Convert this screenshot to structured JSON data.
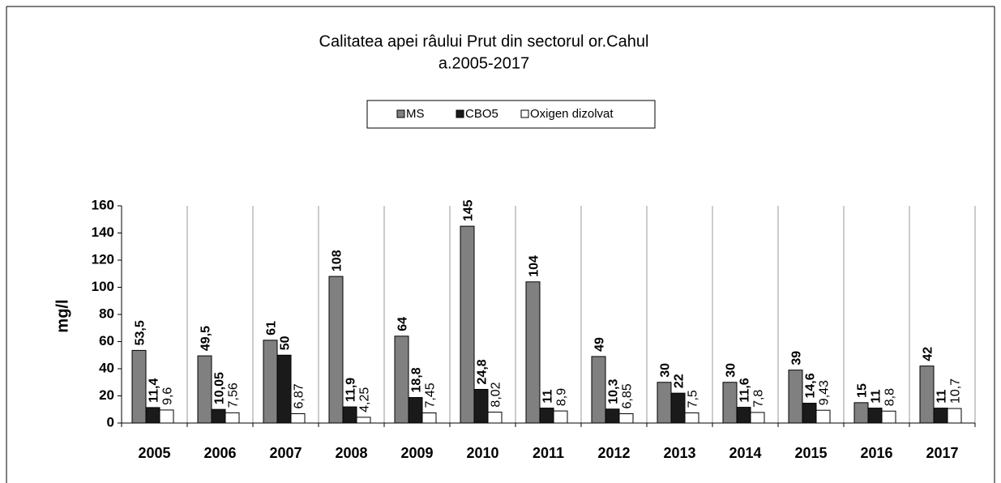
{
  "chart_data": {
    "type": "bar",
    "title": "Calitatea apei râului Prut din sectorul or.Cahul",
    "subtitle": "a.2005-2017",
    "y_label": "mg/l",
    "categories": [
      "2005",
      "2006",
      "2007",
      "2008",
      "2009",
      "2010",
      "2011",
      "2012",
      "2013",
      "2014",
      "2015",
      "2016",
      "2017"
    ],
    "series": [
      {
        "name": "MS",
        "color": "#808080",
        "values": [
          53.5,
          49.5,
          61,
          108,
          64,
          145,
          104,
          49,
          30,
          30,
          39,
          15,
          42
        ],
        "value_labels": [
          "53,5",
          "49,5",
          "61",
          "108",
          "64",
          "145",
          "104",
          "49",
          "30",
          "30",
          "39",
          "15",
          "42"
        ]
      },
      {
        "name": "CBO5",
        "color": "#1a1a1a",
        "values": [
          11.4,
          10.05,
          50,
          11.9,
          18.8,
          24.8,
          11,
          10.3,
          22,
          11.6,
          14.6,
          11,
          11
        ],
        "value_labels": [
          "11,4",
          "10,05",
          "50",
          "11,9",
          "18,8",
          "24,8",
          "11",
          "10,3",
          "22",
          "11,6",
          "14,6",
          "11",
          "11"
        ]
      },
      {
        "name": "Oxigen dizolvat",
        "color": "#ffffff",
        "values": [
          9.6,
          7.56,
          6.87,
          4.25,
          7.45,
          8.02,
          8.9,
          6.85,
          7.5,
          7.8,
          9.43,
          8.8,
          10.7
        ],
        "value_labels": [
          "9,6",
          "7,56",
          "6,87",
          "4,25",
          "7,45",
          "8,02",
          "8,9",
          "6,85",
          "7,5",
          "7,8",
          "9,43",
          "8,8",
          "10,7"
        ]
      }
    ],
    "ylim": [
      0,
      160
    ],
    "yticks": [
      0,
      20,
      40,
      60,
      80,
      100,
      120,
      140,
      160
    ],
    "grid": "x"
  }
}
